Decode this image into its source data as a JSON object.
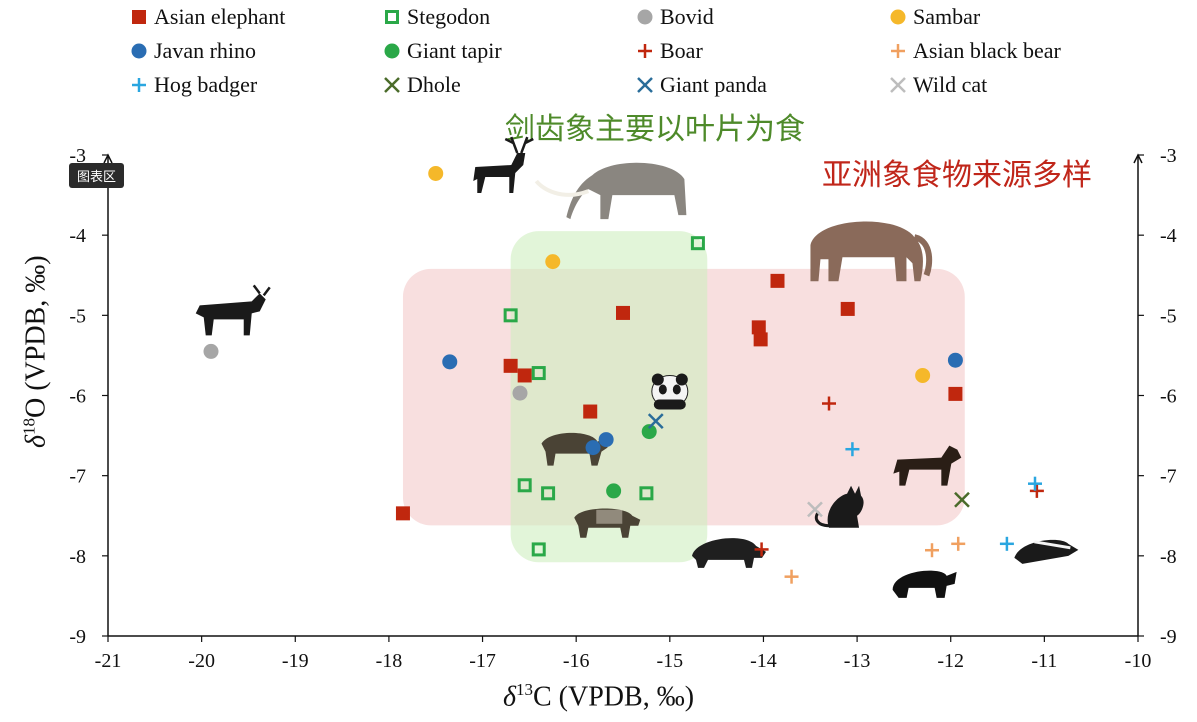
{
  "banners": {
    "green": "剑齿象主要以叶片为食",
    "red": "亚洲象食物来源多样",
    "tag": "图表区"
  },
  "legend": [
    {
      "label": "Asian elephant",
      "marker": "square",
      "color": "#c0270e"
    },
    {
      "label": "Stegodon",
      "marker": "square-open",
      "color": "#2aa848"
    },
    {
      "label": "Bovid",
      "marker": "circle",
      "color": "#a6a6a6"
    },
    {
      "label": "Sambar",
      "marker": "circle",
      "color": "#f5b82a"
    },
    {
      "label": "Javan rhino",
      "marker": "circle",
      "color": "#2a6db3"
    },
    {
      "label": "Giant tapir",
      "marker": "circle",
      "color": "#2aa848"
    },
    {
      "label": "Boar",
      "marker": "plus",
      "color": "#c0270e"
    },
    {
      "label": "Asian black bear",
      "marker": "plus",
      "color": "#f0a060"
    },
    {
      "label": "Hog badger",
      "marker": "plus",
      "color": "#2aa6e0"
    },
    {
      "label": "Dhole",
      "marker": "x",
      "color": "#4a6b2a"
    },
    {
      "label": "Giant panda",
      "marker": "x",
      "color": "#2a6d9a"
    },
    {
      "label": "Wild cat",
      "marker": "x",
      "color": "#bdbdbd"
    }
  ],
  "chart_data": {
    "type": "scatter",
    "xlabel_prefix": "δ",
    "xlabel_sup": "13",
    "xlabel_rest": "C (VPDB, ‰)",
    "ylabel_prefix": "δ",
    "ylabel_sup": "18",
    "ylabel_rest": "O (VPDB, ‰)",
    "xlim": [
      -21,
      -10
    ],
    "ylim": [
      -9,
      -3
    ],
    "xticks": [
      "-21",
      "-20",
      "-19",
      "-18",
      "-17",
      "-16",
      "-15",
      "-14",
      "-13",
      "-12",
      "-11",
      "-10"
    ],
    "yticks": [
      "-3",
      "-4",
      "-5",
      "-6",
      "-7",
      "-8",
      "-9"
    ],
    "regions": [
      {
        "name": "Asian elephant range",
        "x": [
          -17.85,
          -11.85
        ],
        "y": [
          -7.62,
          -4.42
        ],
        "color": "#f4c9c9"
      },
      {
        "name": "Stegodon range",
        "x": [
          -16.7,
          -14.6
        ],
        "y": [
          -8.08,
          -3.95
        ],
        "color": "#cfeec0"
      }
    ],
    "series": [
      {
        "name": "Asian elephant",
        "points": [
          [
            -17.85,
            -7.47
          ],
          [
            -16.7,
            -5.63
          ],
          [
            -16.55,
            -5.75
          ],
          [
            -15.85,
            -6.2
          ],
          [
            -15.5,
            -4.97
          ],
          [
            -14.05,
            -5.15
          ],
          [
            -14.03,
            -5.3
          ],
          [
            -13.85,
            -4.57
          ],
          [
            -13.1,
            -4.92
          ],
          [
            -11.95,
            -5.98
          ]
        ]
      },
      {
        "name": "Stegodon",
        "points": [
          [
            -16.7,
            -5.0
          ],
          [
            -16.55,
            -7.12
          ],
          [
            -16.4,
            -5.72
          ],
          [
            -16.3,
            -7.22
          ],
          [
            -16.4,
            -7.92
          ],
          [
            -15.25,
            -7.22
          ],
          [
            -14.7,
            -4.1
          ]
        ]
      },
      {
        "name": "Bovid",
        "points": [
          [
            -19.9,
            -5.45
          ],
          [
            -16.6,
            -5.97
          ]
        ]
      },
      {
        "name": "Sambar",
        "points": [
          [
            -17.5,
            -3.23
          ],
          [
            -16.25,
            -4.33
          ],
          [
            -12.3,
            -5.75
          ]
        ]
      },
      {
        "name": "Javan rhino",
        "points": [
          [
            -17.35,
            -5.58
          ],
          [
            -15.82,
            -6.65
          ],
          [
            -15.68,
            -6.55
          ],
          [
            -11.95,
            -5.56
          ]
        ]
      },
      {
        "name": "Giant tapir",
        "points": [
          [
            -15.6,
            -7.19
          ],
          [
            -15.22,
            -6.45
          ]
        ]
      },
      {
        "name": "Boar",
        "points": [
          [
            -14.02,
            -7.92
          ],
          [
            -13.3,
            -6.1
          ],
          [
            -11.08,
            -7.19
          ]
        ]
      },
      {
        "name": "Asian black bear",
        "points": [
          [
            -13.7,
            -8.26
          ],
          [
            -12.2,
            -7.93
          ],
          [
            -11.92,
            -7.85
          ]
        ]
      },
      {
        "name": "Hog badger",
        "points": [
          [
            -13.05,
            -6.67
          ],
          [
            -11.4,
            -7.85
          ],
          [
            -11.1,
            -7.1
          ]
        ]
      },
      {
        "name": "Dhole",
        "points": [
          [
            -11.88,
            -7.3
          ]
        ]
      },
      {
        "name": "Giant panda",
        "points": [
          [
            -15.15,
            -6.32
          ]
        ]
      },
      {
        "name": "Wild cat",
        "points": [
          [
            -13.45,
            -7.42
          ]
        ]
      }
    ],
    "illustrations": [
      {
        "name": "deer",
        "x": -16.8,
        "y": -3.2
      },
      {
        "name": "stegodon",
        "x": -15.4,
        "y": -3.5
      },
      {
        "name": "asian-elephant",
        "x": -12.9,
        "y": -4.2
      },
      {
        "name": "bovid",
        "x": -19.7,
        "y": -5.0
      },
      {
        "name": "rhino",
        "x": -16.05,
        "y": -6.7
      },
      {
        "name": "panda",
        "x": -15.0,
        "y": -5.95
      },
      {
        "name": "tapir",
        "x": -15.7,
        "y": -7.6
      },
      {
        "name": "boar",
        "x": -14.4,
        "y": -7.95
      },
      {
        "name": "cat",
        "x": -13.15,
        "y": -7.4
      },
      {
        "name": "dhole",
        "x": -12.25,
        "y": -6.9
      },
      {
        "name": "bear",
        "x": -12.3,
        "y": -8.3
      },
      {
        "name": "badger",
        "x": -11.0,
        "y": -7.9
      }
    ]
  }
}
